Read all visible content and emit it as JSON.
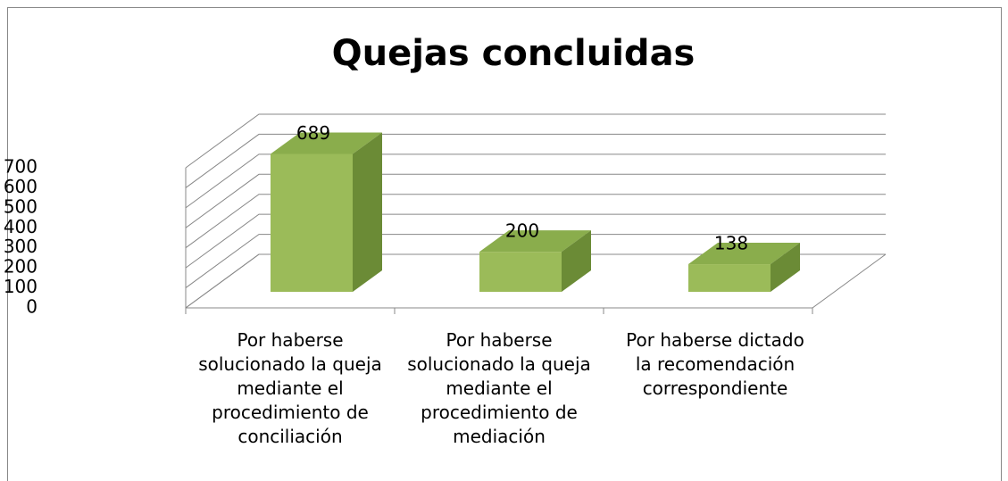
{
  "chart_data": {
    "type": "bar3d",
    "title": "Quejas concluidas",
    "categories": [
      "Por haberse solucionado la queja mediante el procedimiento de conciliación",
      "Por haberse solucionado la queja mediante el procedimiento de mediación",
      "Por haberse dictado la recomendación correspondiente"
    ],
    "values": [
      689,
      200,
      138
    ],
    "color": "#9bbb59",
    "ylim": [
      0,
      700
    ],
    "yticks": [
      0,
      100,
      200,
      300,
      400,
      500,
      600,
      700
    ],
    "grid": true
  }
}
